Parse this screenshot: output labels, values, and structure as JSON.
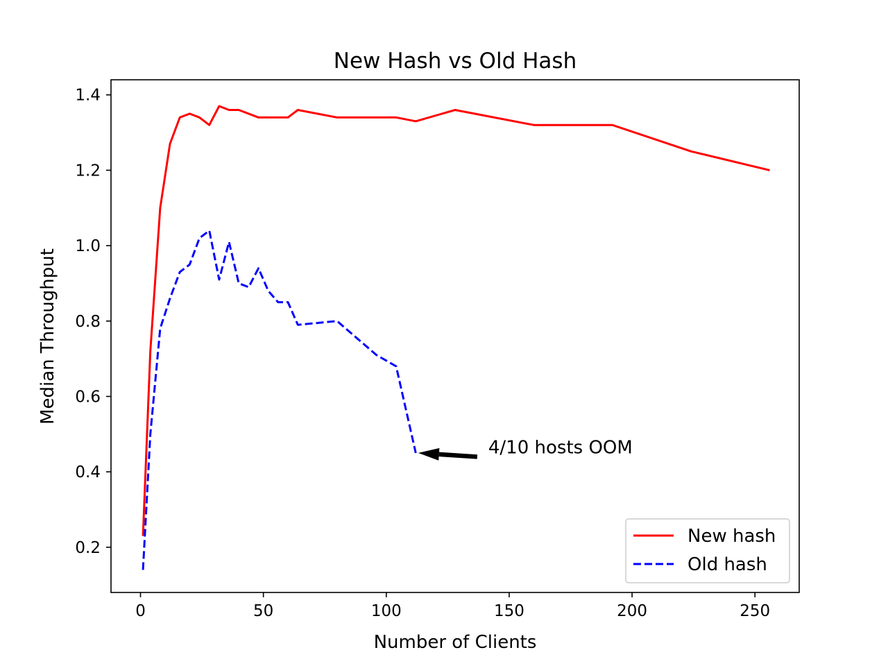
{
  "chart_data": {
    "type": "line",
    "title": "New Hash vs Old Hash",
    "xlabel": "Number of Clients",
    "ylabel": "Median Throughput",
    "xlim": [
      -12,
      268
    ],
    "ylim": [
      0.08,
      1.44
    ],
    "xticks": [
      0,
      50,
      100,
      150,
      200,
      250
    ],
    "yticks": [
      0.2,
      0.4,
      0.6,
      0.8,
      1.0,
      1.2,
      1.4
    ],
    "xtick_labels": [
      "0",
      "50",
      "100",
      "150",
      "200",
      "250"
    ],
    "ytick_labels": [
      "0.2",
      "0.4",
      "0.6",
      "0.8",
      "1.0",
      "1.2",
      "1.4"
    ],
    "grid": false,
    "legend_position": "lower-right",
    "series": [
      {
        "name": "New hash",
        "color": "#ff0000",
        "style": "solid",
        "x": [
          1,
          4,
          8,
          12,
          16,
          20,
          24,
          28,
          32,
          36,
          40,
          48,
          56,
          60,
          64,
          80,
          96,
          104,
          112,
          128,
          160,
          192,
          224,
          256
        ],
        "y": [
          0.23,
          0.72,
          1.1,
          1.27,
          1.34,
          1.35,
          1.34,
          1.32,
          1.37,
          1.36,
          1.36,
          1.34,
          1.34,
          1.34,
          1.36,
          1.34,
          1.34,
          1.34,
          1.33,
          1.36,
          1.32,
          1.32,
          1.25,
          1.2
        ]
      },
      {
        "name": "Old hash",
        "color": "#0000ff",
        "style": "dashed",
        "x": [
          1,
          4,
          8,
          12,
          16,
          20,
          24,
          28,
          32,
          36,
          40,
          44,
          48,
          52,
          56,
          60,
          64,
          80,
          96,
          104,
          112
        ],
        "y": [
          0.14,
          0.5,
          0.78,
          0.86,
          0.93,
          0.95,
          1.02,
          1.04,
          0.91,
          1.01,
          0.9,
          0.89,
          0.94,
          0.88,
          0.85,
          0.85,
          0.79,
          0.8,
          0.71,
          0.68,
          0.45
        ]
      }
    ],
    "annotations": [
      {
        "text": "4/10 hosts OOM",
        "point": [
          113,
          0.45
        ],
        "text_anchor_point": [
          137,
          0.44
        ]
      }
    ]
  }
}
